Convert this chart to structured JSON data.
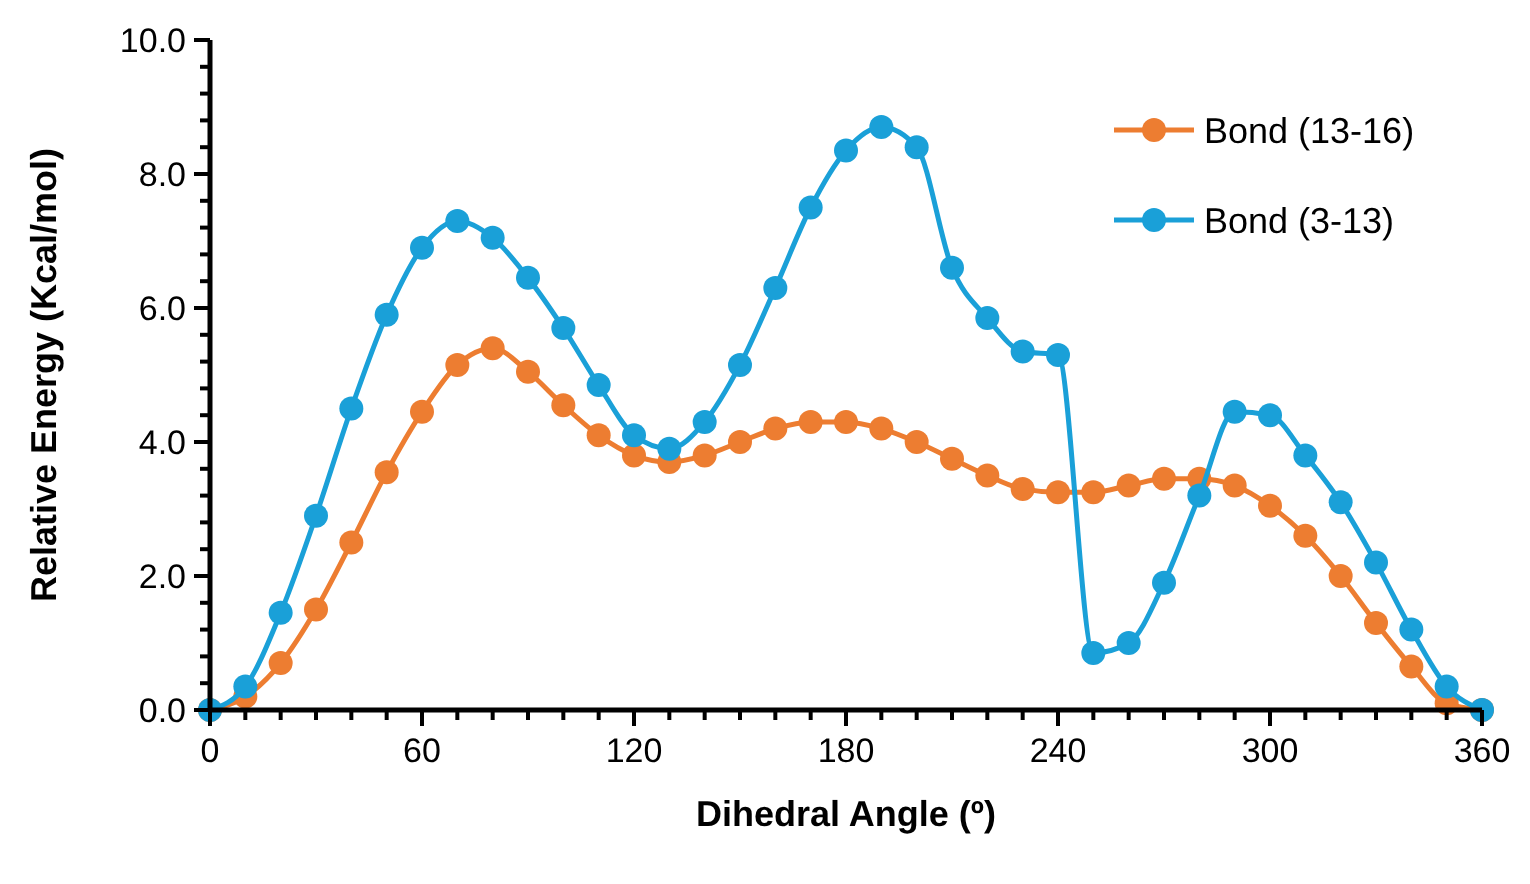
{
  "chart_data": {
    "type": "line",
    "xlabel": "Dihedral Angle (º)",
    "ylabel": "Relative Energy (Kcal/mol)",
    "x": [
      0,
      10,
      20,
      30,
      40,
      50,
      60,
      70,
      80,
      90,
      100,
      110,
      120,
      130,
      140,
      150,
      160,
      170,
      180,
      190,
      200,
      210,
      220,
      230,
      240,
      250,
      260,
      270,
      280,
      290,
      300,
      310,
      320,
      330,
      340,
      350,
      360
    ],
    "series": [
      {
        "name": "Bond (13-16)",
        "color": "#ed7d31",
        "values": [
          0,
          0.2,
          0.7,
          1.5,
          2.5,
          3.55,
          4.45,
          5.15,
          5.4,
          5.05,
          4.55,
          4.1,
          3.8,
          3.7,
          3.8,
          4.0,
          4.2,
          4.3,
          4.3,
          4.2,
          4.0,
          3.75,
          3.5,
          3.3,
          3.25,
          3.25,
          3.35,
          3.45,
          3.45,
          3.35,
          3.05,
          2.6,
          2.0,
          1.3,
          0.65,
          0.1,
          0
        ]
      },
      {
        "name": "Bond (3-13)",
        "color": "#1aa0d8",
        "values": [
          0,
          0.35,
          1.45,
          2.9,
          4.5,
          5.9,
          6.9,
          7.3,
          7.05,
          6.45,
          5.7,
          4.85,
          4.1,
          3.9,
          4.3,
          5.15,
          6.3,
          7.5,
          8.35,
          8.7,
          8.4,
          6.6,
          5.85,
          5.35,
          5.3,
          0.85,
          1.0,
          1.9,
          3.2,
          4.45,
          4.4,
          3.8,
          3.1,
          2.2,
          1.2,
          0.35,
          0
        ]
      }
    ],
    "xlim": [
      0,
      360
    ],
    "xticks": [
      0,
      {
        "value": 10,
        "label": null
      },
      {
        "value": 20,
        "label": null
      },
      {
        "value": 30,
        "label": null
      },
      {
        "value": 40,
        "label": null
      },
      {
        "value": 50,
        "label": null
      },
      60,
      {
        "value": 70,
        "label": null
      },
      {
        "value": 80,
        "label": null
      },
      {
        "value": 90,
        "label": null
      },
      {
        "value": 100,
        "label": null
      },
      {
        "value": 110,
        "label": null
      },
      120,
      {
        "value": 130,
        "label": null
      },
      {
        "value": 140,
        "label": null
      },
      {
        "value": 150,
        "label": null
      },
      {
        "value": 160,
        "label": null
      },
      {
        "value": 170,
        "label": null
      },
      180,
      {
        "value": 190,
        "label": null
      },
      {
        "value": 200,
        "label": null
      },
      {
        "value": 210,
        "label": null
      },
      {
        "value": 220,
        "label": null
      },
      {
        "value": 230,
        "label": null
      },
      240,
      {
        "value": 250,
        "label": null
      },
      {
        "value": 260,
        "label": null
      },
      {
        "value": 270,
        "label": null
      },
      {
        "value": 280,
        "label": null
      },
      {
        "value": 290,
        "label": null
      },
      300,
      {
        "value": 310,
        "label": null
      },
      {
        "value": 320,
        "label": null
      },
      {
        "value": 330,
        "label": null
      },
      {
        "value": 340,
        "label": null
      },
      {
        "value": 350,
        "label": null
      },
      360
    ],
    "ylim": [
      0,
      10
    ],
    "yticks": [
      {
        "value": 0,
        "label": "0.0"
      },
      {
        "value": 0.4,
        "label": null
      },
      {
        "value": 0.8,
        "label": null
      },
      {
        "value": 1.2,
        "label": null
      },
      {
        "value": 1.6,
        "label": null
      },
      {
        "value": 2,
        "label": "2.0"
      },
      {
        "value": 2.4,
        "label": null
      },
      {
        "value": 2.8,
        "label": null
      },
      {
        "value": 3.2,
        "label": null
      },
      {
        "value": 3.6,
        "label": null
      },
      {
        "value": 4,
        "label": "4.0"
      },
      {
        "value": 4.4,
        "label": null
      },
      {
        "value": 4.8,
        "label": null
      },
      {
        "value": 5.2,
        "label": null
      },
      {
        "value": 5.6,
        "label": null
      },
      {
        "value": 6,
        "label": "6.0"
      },
      {
        "value": 6.4,
        "label": null
      },
      {
        "value": 6.8,
        "label": null
      },
      {
        "value": 7.2,
        "label": null
      },
      {
        "value": 7.6,
        "label": null
      },
      {
        "value": 8,
        "label": "8.0"
      },
      {
        "value": 8.4,
        "label": null
      },
      {
        "value": 8.8,
        "label": null
      },
      {
        "value": 9.2,
        "label": null
      },
      {
        "value": 9.6,
        "label": null
      },
      {
        "value": 10,
        "label": "10.0"
      }
    ],
    "grid": false,
    "legend": "top right",
    "marker": "circle",
    "line_style": "solid"
  }
}
